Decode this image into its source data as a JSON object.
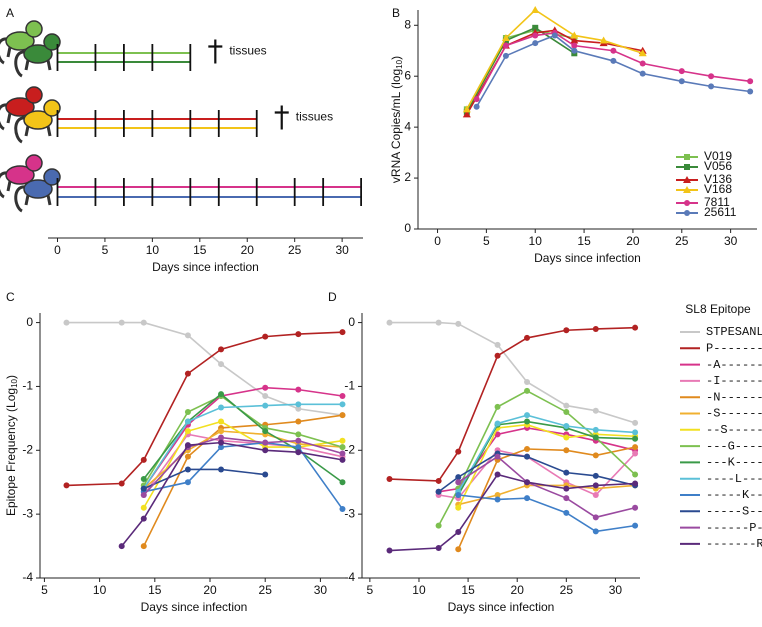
{
  "chart_data": [
    {
      "type": "timeline",
      "panel": "A",
      "xlabel": "Days since infection",
      "xlim": [
        -1,
        32.2
      ],
      "xticks": [
        0,
        5,
        10,
        15,
        20,
        25,
        30
      ],
      "groups": [
        {
          "colors": [
            "#7dc050",
            "#3a8a3a"
          ],
          "values": [
            0,
            4,
            7,
            10,
            14
          ],
          "label": "tissues"
        },
        {
          "colors": [
            "#c81e1e",
            "#f2c418"
          ],
          "values": [
            0,
            4,
            7,
            10,
            14,
            17,
            21
          ],
          "label": "tissues"
        },
        {
          "colors": [
            "#d6338a",
            "#4a6ab0"
          ],
          "values": [
            0,
            4,
            7,
            10,
            14,
            17,
            21,
            25,
            28,
            32
          ]
        }
      ]
    },
    {
      "type": "line",
      "panel": "B",
      "xlabel": "Days since infection",
      "ylabel": [
        "vRNA Copies/mL (log",
        "10",
        ")"
      ],
      "xlim": [
        -2,
        32.7
      ],
      "xticks": [
        0,
        5,
        10,
        15,
        20,
        25,
        30
      ],
      "ylim": [
        0,
        8.6
      ],
      "yticks": [
        0,
        2,
        4,
        6,
        8
      ],
      "legend": "right",
      "series": [
        {
          "name": "V019",
          "color": "#7dc050",
          "marker": "square",
          "x": [
            3,
            7,
            10,
            14
          ],
          "values": [
            4.7,
            7.5,
            7.8,
            7.5
          ]
        },
        {
          "name": "V056",
          "color": "#3a8a3a",
          "marker": "square",
          "x": [
            3,
            7,
            10,
            14
          ],
          "values": [
            4.6,
            7.4,
            7.9,
            6.9
          ]
        },
        {
          "name": "V136",
          "color": "#c81e1e",
          "marker": "triangle",
          "x": [
            3,
            7,
            10,
            12,
            14,
            17,
            21
          ],
          "values": [
            4.5,
            7.2,
            7.7,
            7.8,
            7.4,
            7.3,
            7.0
          ]
        },
        {
          "name": "V168",
          "color": "#f2c418",
          "marker": "triangle",
          "x": [
            3,
            7,
            10,
            14,
            17,
            21
          ],
          "values": [
            4.7,
            7.5,
            8.6,
            7.6,
            7.4,
            6.9
          ]
        },
        {
          "name": "7811",
          "color": "#d6338a",
          "marker": "circle",
          "x": [
            4,
            7,
            10,
            12,
            14,
            18,
            21,
            25,
            28,
            32
          ],
          "values": [
            5.1,
            7.2,
            7.6,
            7.7,
            7.2,
            7.0,
            6.5,
            6.2,
            6.0,
            5.8
          ]
        },
        {
          "name": "25611",
          "color": "#5a7ab8",
          "marker": "circle",
          "x": [
            4,
            7,
            10,
            12,
            14,
            18,
            21,
            25,
            28,
            32
          ],
          "values": [
            4.8,
            6.8,
            7.3,
            7.6,
            7.0,
            6.6,
            6.1,
            5.8,
            5.6,
            5.4
          ]
        }
      ]
    },
    {
      "type": "line",
      "panel": "C",
      "xlabel": "Days since infection",
      "ylabel": [
        "Epitope Frequency (Log",
        "10",
        ")"
      ],
      "marker": "circle",
      "xlim": [
        4.6,
        32.5
      ],
      "xticks": [
        5,
        10,
        15,
        20,
        25,
        30
      ],
      "ylim": [
        -4,
        0.15
      ],
      "yticks": [
        0,
        -1,
        -2,
        -3,
        -4
      ],
      "series": [
        {
          "color": "#c8c8c8",
          "x": [
            7,
            12,
            14,
            18,
            21,
            25,
            28,
            32
          ],
          "values": [
            0,
            0,
            0,
            -0.2,
            -0.65,
            -1.15,
            -1.35,
            -1.45
          ]
        },
        {
          "color": "#b22222",
          "x": [
            7,
            12,
            14,
            18,
            21,
            25,
            28,
            32
          ],
          "values": [
            -2.55,
            -2.52,
            -2.15,
            -0.8,
            -0.42,
            -0.22,
            -0.18,
            -0.15
          ]
        },
        {
          "color": "#d6338a",
          "x": [
            14,
            18,
            21,
            25,
            28,
            32
          ],
          "values": [
            -2.6,
            -1.6,
            -1.15,
            -1.02,
            -1.05,
            -1.15
          ]
        },
        {
          "color": "#e87ab5",
          "x": [
            14,
            18,
            21,
            25,
            28,
            32
          ],
          "values": [
            -2.7,
            -1.75,
            -1.85,
            -1.9,
            -1.95,
            -2.1
          ]
        },
        {
          "color": "#e08a1e",
          "x": [
            14,
            18,
            21,
            25,
            28,
            32
          ],
          "values": [
            -3.5,
            -2.1,
            -1.65,
            -1.6,
            -1.55,
            -1.45
          ]
        },
        {
          "color": "#f0b030",
          "x": [
            14,
            18,
            21,
            25,
            28,
            32
          ],
          "values": [
            -2.6,
            -2.0,
            -1.7,
            -1.75,
            -1.9,
            -1.95
          ]
        },
        {
          "color": "#f2e020",
          "x": [
            14,
            18,
            21,
            25,
            28,
            32
          ],
          "values": [
            -2.9,
            -1.7,
            -1.55,
            -1.95,
            -1.95,
            -1.85
          ]
        },
        {
          "color": "#7dc050",
          "x": [
            14,
            18,
            21,
            25,
            28,
            32
          ],
          "values": [
            -2.55,
            -1.4,
            -1.15,
            -1.65,
            -1.75,
            -1.95
          ]
        },
        {
          "color": "#3a9a48",
          "x": [
            14,
            18,
            21,
            25,
            28,
            32
          ],
          "values": [
            -2.45,
            -1.55,
            -1.12,
            -1.7,
            -2.0,
            -2.5
          ]
        },
        {
          "color": "#5bc0d8",
          "x": [
            14,
            18,
            21,
            25,
            28,
            32
          ],
          "values": [
            -2.6,
            -1.55,
            -1.33,
            -1.3,
            -1.28,
            -1.28
          ]
        },
        {
          "color": "#3f7fc8",
          "x": [
            14,
            18,
            21,
            25,
            28,
            32
          ],
          "values": [
            -2.65,
            -2.5,
            -1.95,
            -1.88,
            -1.95,
            -2.92
          ]
        },
        {
          "color": "#2a4a90",
          "x": [
            14,
            18,
            21,
            25
          ],
          "values": [
            -2.6,
            -2.3,
            -2.3,
            -2.38
          ]
        },
        {
          "color": "#9a4aa0",
          "x": [
            14,
            18,
            21,
            25,
            28,
            32
          ],
          "values": [
            -2.7,
            -1.95,
            -1.8,
            -1.88,
            -1.85,
            -2.05
          ]
        },
        {
          "color": "#5a2a7a",
          "x": [
            12,
            14,
            18,
            21,
            25,
            28,
            32
          ],
          "values": [
            -3.5,
            -3.07,
            -1.92,
            -1.88,
            -2.0,
            -2.03,
            -2.15
          ]
        }
      ]
    },
    {
      "type": "line",
      "panel": "D",
      "xlabel": "Days since infection",
      "marker": "circle",
      "xlim": [
        4.2,
        32.5
      ],
      "xticks": [
        5,
        10,
        15,
        20,
        25,
        30
      ],
      "ylim": [
        -4,
        0.15
      ],
      "yticks": [
        0,
        -1,
        -2,
        -3,
        -4
      ],
      "legend": "right",
      "legend_title": "SL8 Epitope",
      "series": [
        {
          "name": "STPESANL",
          "color": "#c8c8c8",
          "x": [
            7,
            12,
            14,
            18,
            21,
            25,
            28,
            32
          ],
          "values": [
            0,
            0,
            -0.02,
            -0.35,
            -0.93,
            -1.3,
            -1.38,
            -1.57
          ]
        },
        {
          "name": "P-------",
          "color": "#b22222",
          "x": [
            7,
            12,
            14,
            18,
            21,
            25,
            28,
            32
          ],
          "values": [
            -2.45,
            -2.48,
            -2.02,
            -0.52,
            -0.24,
            -0.12,
            -0.1,
            -0.08
          ]
        },
        {
          "name": "-A------",
          "color": "#d6338a",
          "x": [
            12,
            14,
            18,
            21,
            25,
            28,
            32
          ],
          "values": [
            -2.65,
            -2.6,
            -1.75,
            -1.65,
            -1.75,
            -1.85,
            -2.0
          ]
        },
        {
          "name": "-I------",
          "color": "#e87ab5",
          "x": [
            12,
            14,
            18,
            21,
            25,
            28,
            32
          ],
          "values": [
            -2.7,
            -2.75,
            -2.0,
            -2.1,
            -2.5,
            -2.7,
            -2.05
          ]
        },
        {
          "name": "-N------",
          "color": "#e08a1e",
          "x": [
            14,
            18,
            21,
            25,
            28,
            32
          ],
          "values": [
            -3.55,
            -2.15,
            -1.98,
            -2.0,
            -2.08,
            -1.95
          ]
        },
        {
          "name": "-S------",
          "color": "#f0b030",
          "x": [
            14,
            18,
            21,
            25,
            28,
            32
          ],
          "values": [
            -2.85,
            -2.7,
            -2.55,
            -2.55,
            -2.6,
            -2.55
          ]
        },
        {
          "name": "--S-----",
          "color": "#f2e020",
          "x": [
            14,
            18,
            21,
            25,
            28,
            32
          ],
          "values": [
            -2.9,
            -1.65,
            -1.6,
            -1.8,
            -1.75,
            -1.78
          ]
        },
        {
          "name": "---G----",
          "color": "#7dc050",
          "x": [
            12,
            14,
            18,
            21,
            25,
            28,
            32
          ],
          "values": [
            -3.18,
            -2.6,
            -1.32,
            -1.07,
            -1.4,
            -1.8,
            -2.38
          ]
        },
        {
          "name": "---K----",
          "color": "#3a9a48",
          "x": [
            14,
            18,
            21,
            25,
            28,
            32
          ],
          "values": [
            -2.7,
            -1.6,
            -1.55,
            -1.65,
            -1.8,
            -1.82
          ]
        },
        {
          "name": "----L---",
          "color": "#5bc0d8",
          "x": [
            14,
            18,
            21,
            25,
            28,
            32
          ],
          "values": [
            -2.65,
            -1.58,
            -1.45,
            -1.62,
            -1.68,
            -1.72
          ]
        },
        {
          "name": "-----K--",
          "color": "#3f7fc8",
          "x": [
            14,
            18,
            21,
            25,
            28,
            32
          ],
          "values": [
            -2.7,
            -2.77,
            -2.75,
            -2.98,
            -3.27,
            -3.18
          ]
        },
        {
          "name": "-----S--",
          "color": "#2a4a90",
          "x": [
            12,
            14,
            18,
            21,
            25,
            28,
            32
          ],
          "values": [
            -2.65,
            -2.42,
            -2.05,
            -2.1,
            -2.35,
            -2.4,
            -2.55
          ]
        },
        {
          "name": "------P-",
          "color": "#9a4aa0",
          "x": [
            14,
            18,
            21,
            25,
            28,
            32
          ],
          "values": [
            -2.5,
            -2.1,
            -2.5,
            -2.75,
            -3.05,
            -2.9
          ]
        },
        {
          "name": "-------R",
          "color": "#5a2a7a",
          "x": [
            7,
            12,
            14,
            18,
            21,
            25,
            28,
            32
          ],
          "values": [
            -3.57,
            -3.53,
            -3.28,
            -2.38,
            -2.5,
            -2.6,
            -2.55,
            -2.52
          ]
        }
      ]
    }
  ]
}
